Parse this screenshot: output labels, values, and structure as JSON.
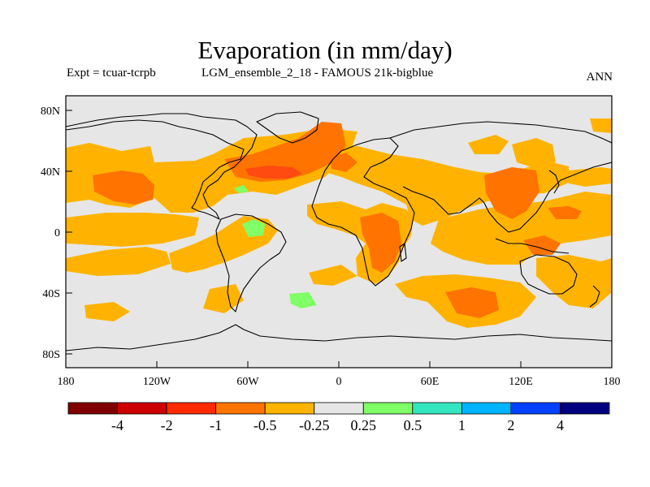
{
  "title": "Evaporation (in mm/day)",
  "subtitle_left": "Expt = tcuar-tcrpb",
  "subtitle_center": "LGM_ensemble_2_18 - FAMOUS 21k-bigblue",
  "subtitle_right": "ANN",
  "map": {
    "background_color": "#e6e6e6",
    "lon_labels": [
      "180",
      "120W",
      "60W",
      "0",
      "60E",
      "120E",
      "180"
    ],
    "lat_labels": [
      "80N",
      "40N",
      "0",
      "40S",
      "80S"
    ]
  },
  "colorbar": {
    "colors": [
      "#800000",
      "#cc0000",
      "#ff2a00",
      "#ff7300",
      "#ffb300",
      "#e6e6e6",
      "#80ff66",
      "#33e6bf",
      "#00b3ff",
      "#0040ff",
      "#000080"
    ],
    "labels": [
      "-4",
      "-2",
      "-1",
      "-0.5",
      "-0.25",
      "0.25",
      "0.5",
      "1",
      "2",
      "4"
    ]
  },
  "legend_colors": {
    "light_orange": "#ffb300",
    "dark_orange": "#ff7300",
    "red_orange": "#ff4a10",
    "light_green": "#80ff66"
  }
}
